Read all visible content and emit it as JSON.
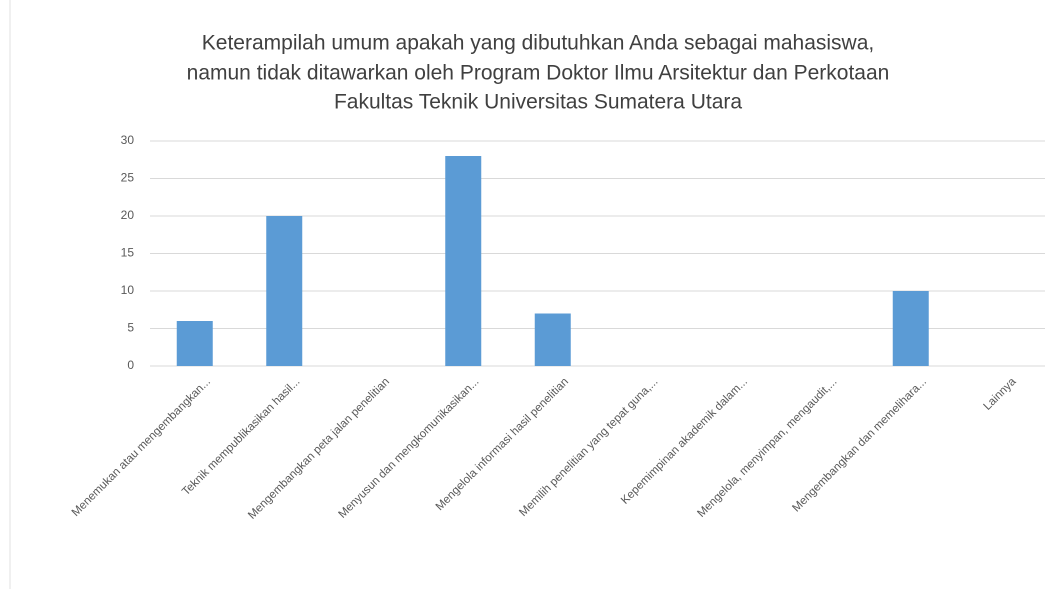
{
  "chart_data": {
    "type": "bar",
    "title": [
      "Keterampilah umum apakah yang dibutuhkan Anda sebagai mahasiswa,",
      "namun  tidak ditawarkan oleh Program Doktor Ilmu Arsitektur dan Perkotaan",
      "Fakultas Teknik Universitas Sumatera Utara"
    ],
    "categories": [
      "Menemukan atau mengembangkan...",
      "Teknik mempublikasikan hasil...",
      "Mengembangkan peta jalan penelitian",
      "Menyusun dan mengkomunikasikan...",
      "Mengelola informasi hasil penelitian",
      "Memilih penelitian yang tepat guna,...",
      "Kepemimpinan akademik dalam...",
      "Mengelola, menyimpan, mengaudit,...",
      "Mengembangkan dan memelihara...",
      "Lainnya"
    ],
    "values": [
      6,
      20,
      0,
      28,
      7,
      0,
      0,
      0,
      10,
      0
    ],
    "color": "#5b9bd5",
    "ylim": [
      0,
      30
    ],
    "yticks": [
      0,
      5,
      10,
      15,
      20,
      25,
      30
    ],
    "grid": true
  }
}
